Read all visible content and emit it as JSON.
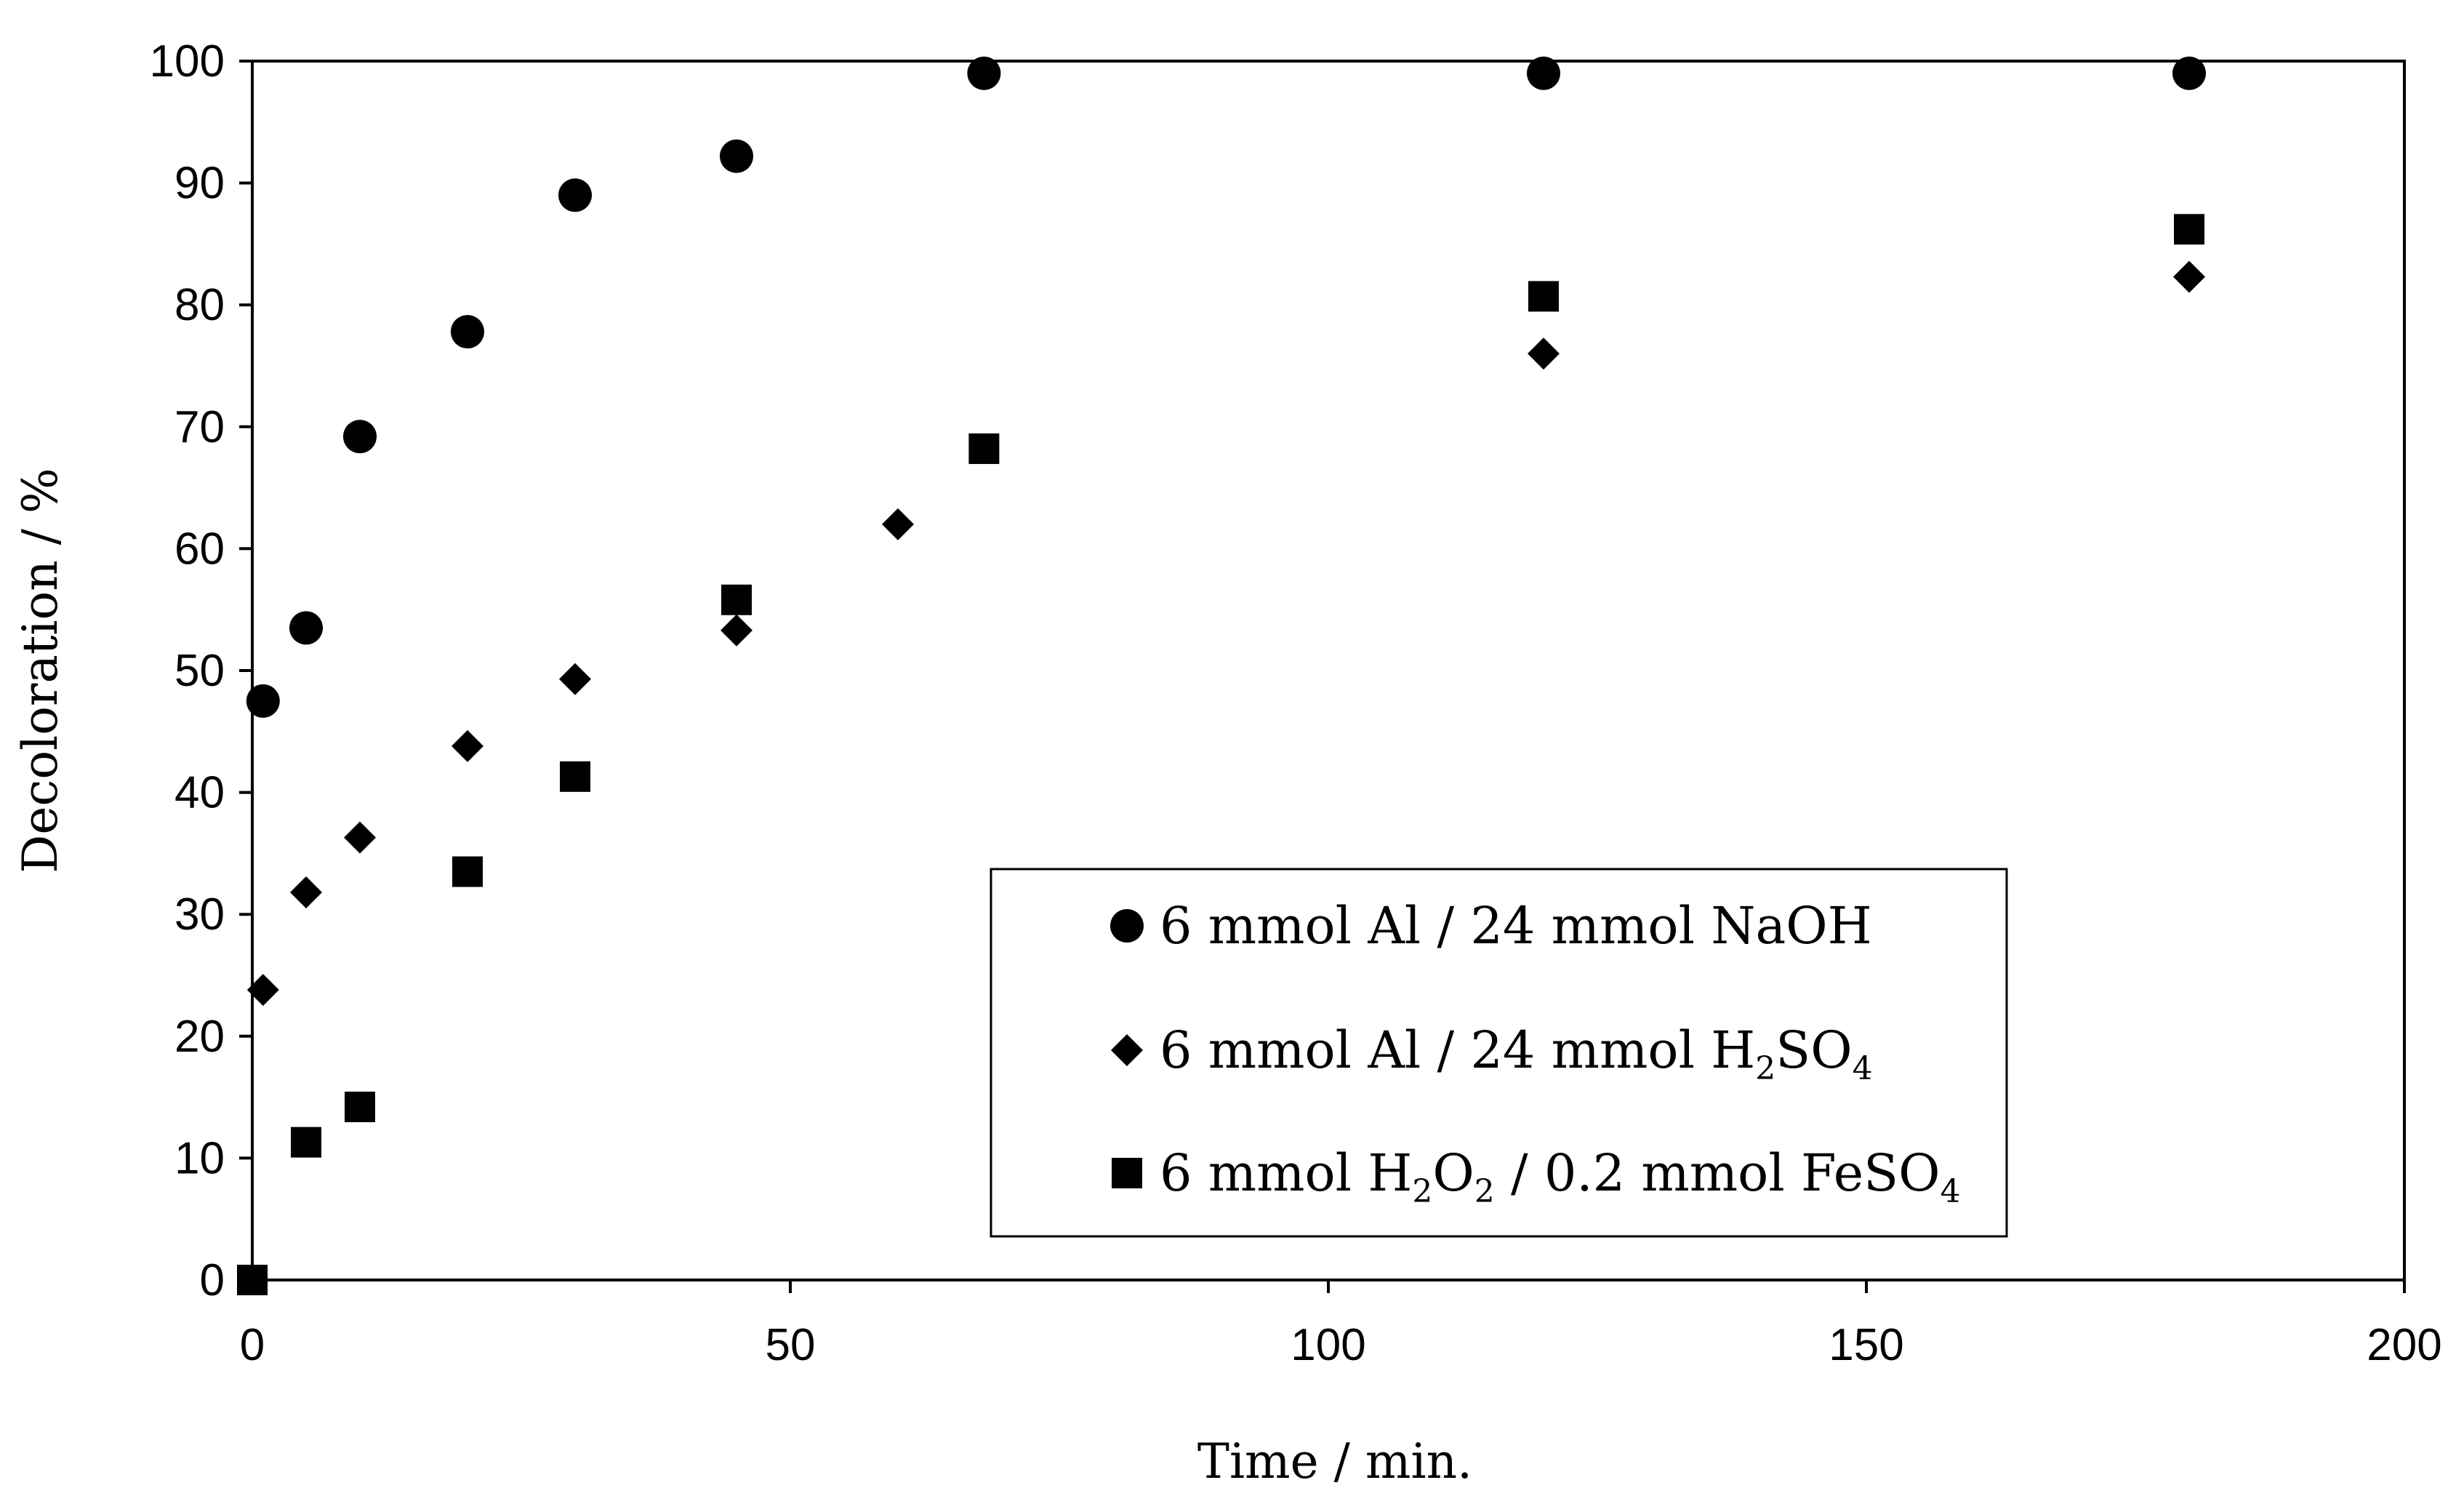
{
  "chart_data": {
    "type": "scatter",
    "title": "",
    "xlabel": "Time / min.",
    "ylabel": "Decoloration / %",
    "xlim": [
      0,
      200
    ],
    "ylim": [
      0,
      100
    ],
    "xticks": [
      0,
      50,
      100,
      150,
      200
    ],
    "yticks": [
      0,
      10,
      20,
      30,
      40,
      50,
      60,
      70,
      80,
      90,
      100
    ],
    "grid": false,
    "legend_position": "bottom-center",
    "series": [
      {
        "name": "6 mmol Al / 24 mmol NaOH",
        "label_parts": [
          {
            "t": "6 mmol Al / 24 mmol NaOH"
          }
        ],
        "marker": "circle",
        "x": [
          1,
          5,
          10,
          20,
          30,
          45,
          68,
          120,
          180
        ],
        "y": [
          47.5,
          53.5,
          69.2,
          77.8,
          89,
          92.2,
          99,
          99,
          99
        ]
      },
      {
        "name": "6 mmol Al / 24 mmol H2SO4",
        "label_parts": [
          {
            "t": "6 mmol Al / 24 mmol H"
          },
          {
            "t": "2",
            "sub": true
          },
          {
            "t": "SO"
          },
          {
            "t": "4",
            "sub": true
          }
        ],
        "marker": "diamond",
        "x": [
          1,
          5,
          10,
          20,
          30,
          45,
          60,
          120,
          180
        ],
        "y": [
          23.8,
          31.8,
          36.3,
          43.8,
          49.3,
          53.3,
          62,
          76,
          82.3
        ]
      },
      {
        "name": "6 mmol H2O2 / 0.2 mmol FeSO4",
        "label_parts": [
          {
            "t": "6 mmol H"
          },
          {
            "t": "2",
            "sub": true
          },
          {
            "t": "O"
          },
          {
            "t": "2",
            "sub": true
          },
          {
            "t": " / 0.2 mmol FeSO"
          },
          {
            "t": "4",
            "sub": true
          }
        ],
        "marker": "square",
        "x": [
          0,
          5,
          10,
          20,
          30,
          45,
          68,
          120,
          180
        ],
        "y": [
          0,
          11.3,
          14.2,
          33.5,
          41.3,
          55.8,
          68.2,
          80.7,
          86.2
        ]
      }
    ]
  }
}
